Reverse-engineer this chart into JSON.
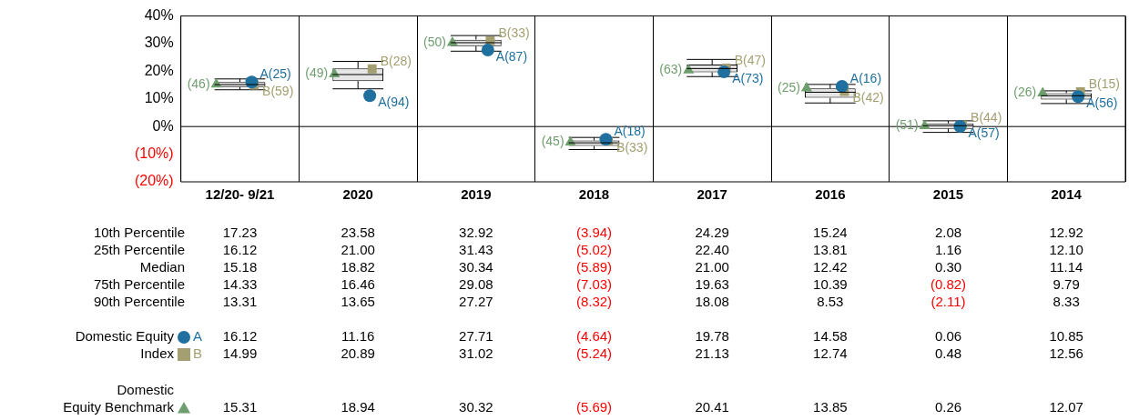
{
  "chart_data": {
    "type": "box",
    "categories": [
      "12/20- 9/21",
      "2020",
      "2019",
      "2018",
      "2017",
      "2016",
      "2015",
      "2014"
    ],
    "boxes": [
      {
        "low": 13.31,
        "q1": 14.33,
        "median": 15.18,
        "q3": 16.12,
        "high": 17.23
      },
      {
        "low": 13.65,
        "q1": 16.46,
        "median": 18.82,
        "q3": 21.0,
        "high": 23.58
      },
      {
        "low": 27.27,
        "q1": 29.08,
        "median": 30.34,
        "q3": 31.43,
        "high": 32.92
      },
      {
        "low": -8.32,
        "q1": -7.03,
        "median": -5.89,
        "q3": -5.02,
        "high": -3.94
      },
      {
        "low": 18.08,
        "q1": 19.63,
        "median": 21.0,
        "q3": 22.4,
        "high": 24.29
      },
      {
        "low": 8.53,
        "q1": 10.39,
        "median": 12.42,
        "q3": 13.81,
        "high": 15.24
      },
      {
        "low": -2.11,
        "q1": -0.82,
        "median": 0.3,
        "q3": 1.16,
        "high": 2.08
      },
      {
        "low": 8.33,
        "q1": 9.79,
        "median": 11.14,
        "q3": 12.1,
        "high": 12.92
      }
    ],
    "series": [
      {
        "name": "Domestic Equity",
        "type": "scatter",
        "marker": "circle",
        "color": "#1f6f9f",
        "values": [
          16.12,
          11.16,
          27.71,
          -4.64,
          19.78,
          14.58,
          0.06,
          10.85
        ],
        "value_labels": [
          "16.12",
          "11.16",
          "27.71",
          "(4.64)",
          "19.78",
          "14.58",
          "0.06",
          "10.85"
        ]
      },
      {
        "name": "Index",
        "type": "scatter",
        "marker": "square",
        "color": "#a39f70",
        "values": [
          14.99,
          20.89,
          31.02,
          -5.24,
          21.13,
          12.74,
          0.48,
          12.56
        ],
        "value_labels": [
          "14.99",
          "20.89",
          "31.02",
          "(5.24)",
          "21.13",
          "12.74",
          "0.48",
          "12.56"
        ]
      },
      {
        "name": "Domestic Equity Benchmark",
        "type": "scatter",
        "marker": "triangle",
        "color": "#6e9e6e",
        "values": [
          15.31,
          18.94,
          30.32,
          -5.69,
          20.41,
          13.85,
          0.26,
          12.07
        ],
        "value_labels": [
          "15.31",
          "18.94",
          "30.32",
          "(5.69)",
          "20.41",
          "13.85",
          "0.26",
          "12.07"
        ]
      }
    ],
    "ylim": [
      -20,
      40
    ],
    "yticks": [
      {
        "value": -20,
        "label": "(20%)"
      },
      {
        "value": -10,
        "label": "(10%)"
      },
      {
        "value": 0,
        "label": "0%"
      },
      {
        "value": 10,
        "label": "10%"
      },
      {
        "value": 20,
        "label": "20%"
      },
      {
        "value": 30,
        "label": "30%"
      },
      {
        "value": 40,
        "label": "40%"
      }
    ],
    "grid": "x",
    "legend": "bottom left",
    "ref_lines": [
      {
        "axis": "y",
        "value": 0
      }
    ],
    "annotations": [
      "10th Percentile",
      "25th Percentile",
      "Median",
      "75th Percentile",
      "90th Percentile",
      "A",
      "B",
      "17.23",
      "23.58",
      "32.92",
      "(3.94)",
      "24.29",
      "15.24",
      "2.08",
      "12.92",
      "16.12",
      "21.00",
      "31.43",
      "(5.02)",
      "22.40",
      "13.81",
      "1.16",
      "12.10",
      "15.18",
      "18.82",
      "30.34",
      "(5.89)",
      "21.00",
      "12.42",
      "0.30",
      "11.14",
      "14.33",
      "16.46",
      "29.08",
      "(7.03)",
      "19.63",
      "10.39",
      "(0.82)",
      "9.79",
      "13.31",
      "13.65",
      "27.27",
      "(8.32)",
      "18.08",
      "8.53",
      "(2.11)",
      "8.33",
      "A(25)",
      "A(94)",
      "A(87)",
      "A(18)",
      "A(73)",
      "A(16)",
      "A(57)",
      "A(56)",
      "B(59)",
      "B(28)",
      "B(33)",
      "B(33)",
      "B(47)",
      "B(42)",
      "B(44)",
      "B(15)",
      "(46)",
      "(49)",
      "(50)",
      "(45)",
      "(63)",
      "(25)",
      "(51)",
      "(26)"
    ]
  }
}
